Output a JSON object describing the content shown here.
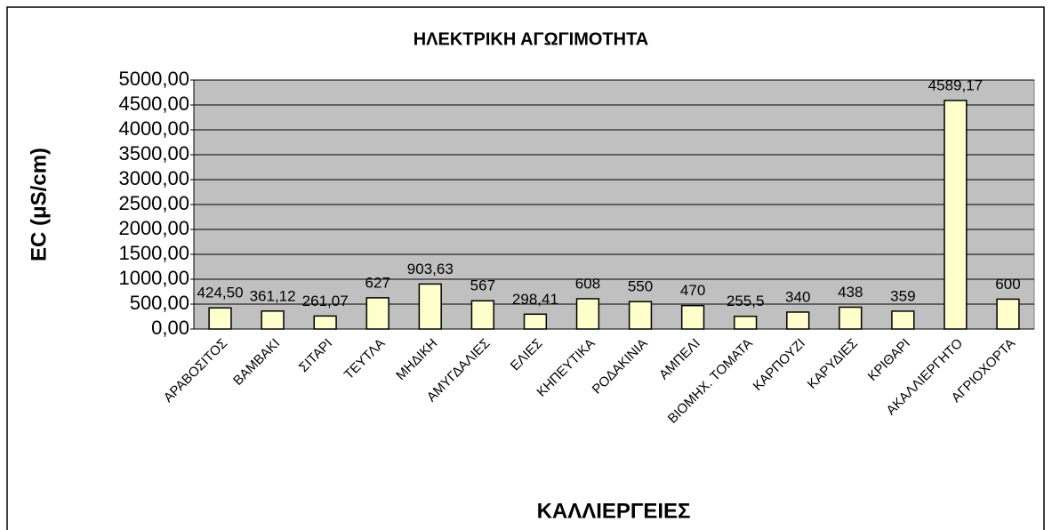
{
  "chart_data": {
    "type": "bar",
    "title": "ΗΛΕΚΤΡΙΚΗ ΑΓΩΓΙΜΟΤΗΤΑ",
    "x_label": "ΚΑΛΛΙΕΡΓΕΙΕΣ",
    "y_label": "EC (μS/cm)",
    "categories": [
      "ΑΡΑΒΟΣΙΤΟΣ",
      "ΒΑΜΒΑΚΙ",
      "ΣΙΤΑΡΙ",
      "ΤΕΥΤΛΑ",
      "ΜΗΔΙΚΗ",
      "ΑΜΥΓΔΑΛΙΕΣ",
      "ΕΛΙΕΣ",
      "ΚΗΠΕΥΤΙΚΑ",
      "ΡΟΔΑΚΙΝΙΑ",
      "ΑΜΠΕΛΙ",
      "ΒΙΟΜΗΧ. ΤΟΜΑΤΑ",
      "ΚΑΡΠΟΥΖΙ",
      "ΚΑΡΥΔΙΕΣ",
      "ΚΡΙΘΑΡΙ",
      "ΑΚΑΛΛΙΕΡΓΗΤΟ",
      "ΑΓΡΙΟΧΟΡΤΑ"
    ],
    "values": [
      424.5,
      361.12,
      261.07,
      627,
      903.63,
      567,
      298.41,
      608,
      550,
      470,
      255.5,
      340,
      438,
      359,
      4589.17,
      600
    ],
    "value_labels": [
      "424,50",
      "361,12",
      "261,07",
      "627",
      "903,63",
      "567",
      "298,41",
      "608",
      "550",
      "470",
      "255,5",
      "340",
      "438",
      "359",
      "4589,17",
      "600"
    ],
    "color": "#ffffcc",
    "ylim": [
      0,
      5000
    ],
    "yticks": [
      {
        "value": 0,
        "label": "0,00"
      },
      {
        "value": 500,
        "label": "500,00"
      },
      {
        "value": 1000,
        "label": "1000,00"
      },
      {
        "value": 1500,
        "label": "1500,00"
      },
      {
        "value": 2000,
        "label": "2000,00"
      },
      {
        "value": 2500,
        "label": "2500,00"
      },
      {
        "value": 3000,
        "label": "3000,00"
      },
      {
        "value": 3500,
        "label": "3500,00"
      },
      {
        "value": 4000,
        "label": "4000,00"
      },
      {
        "value": 4500,
        "label": "4500,00"
      },
      {
        "value": 5000,
        "label": "5000,00"
      }
    ],
    "grid": true
  }
}
